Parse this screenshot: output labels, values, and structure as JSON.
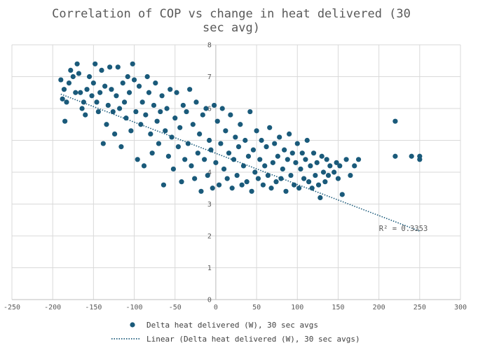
{
  "chart_data": {
    "type": "scatter",
    "title_lines": [
      "Correlation of COP vs change in heat delivered (30",
      "sec avg)"
    ],
    "xlabel": "",
    "ylabel": "",
    "xlim": [
      -250,
      300
    ],
    "ylim": [
      0,
      8
    ],
    "x_ticks": [
      -250,
      -200,
      -150,
      -100,
      -50,
      0,
      50,
      100,
      150,
      200,
      250,
      300
    ],
    "y_ticks": [
      0,
      1,
      2,
      3,
      4,
      5,
      6,
      7,
      8
    ],
    "grid": true,
    "legend_position": "bottom",
    "colors": {
      "marker": "#1a5a7a",
      "trendline": "#1a5a7a",
      "grid": "#d9d9d9",
      "axis": "#bfbfbf"
    },
    "series": [
      {
        "name": "Delta heat delivered (W), 30 sec avgs",
        "style": "markers",
        "points": [
          [
            -190,
            6.9
          ],
          [
            -188,
            6.3
          ],
          [
            -186,
            6.6
          ],
          [
            -185,
            5.6
          ],
          [
            -183,
            6.2
          ],
          [
            -180,
            6.8
          ],
          [
            -178,
            7.2
          ],
          [
            -175,
            7.0
          ],
          [
            -172,
            6.5
          ],
          [
            -170,
            7.4
          ],
          [
            -168,
            7.1
          ],
          [
            -166,
            6.5
          ],
          [
            -164,
            6.0
          ],
          [
            -162,
            6.2
          ],
          [
            -160,
            5.8
          ],
          [
            -158,
            6.6
          ],
          [
            -155,
            7.0
          ],
          [
            -152,
            6.4
          ],
          [
            -150,
            6.8
          ],
          [
            -148,
            7.4
          ],
          [
            -146,
            6.2
          ],
          [
            -144,
            5.9
          ],
          [
            -142,
            6.5
          ],
          [
            -140,
            7.2
          ],
          [
            -138,
            4.9
          ],
          [
            -136,
            6.7
          ],
          [
            -134,
            5.5
          ],
          [
            -132,
            6.1
          ],
          [
            -130,
            7.3
          ],
          [
            -128,
            6.6
          ],
          [
            -126,
            5.9
          ],
          [
            -124,
            5.2
          ],
          [
            -122,
            6.4
          ],
          [
            -120,
            7.3
          ],
          [
            -118,
            6.0
          ],
          [
            -116,
            4.8
          ],
          [
            -114,
            6.8
          ],
          [
            -112,
            6.2
          ],
          [
            -110,
            5.7
          ],
          [
            -108,
            7.0
          ],
          [
            -106,
            6.5
          ],
          [
            -104,
            5.3
          ],
          [
            -102,
            7.4
          ],
          [
            -100,
            6.9
          ],
          [
            -98,
            5.9
          ],
          [
            -96,
            4.4
          ],
          [
            -94,
            6.7
          ],
          [
            -92,
            5.5
          ],
          [
            -90,
            6.2
          ],
          [
            -88,
            4.2
          ],
          [
            -86,
            5.8
          ],
          [
            -84,
            7.0
          ],
          [
            -82,
            6.5
          ],
          [
            -80,
            5.2
          ],
          [
            -78,
            4.6
          ],
          [
            -76,
            6.1
          ],
          [
            -74,
            6.8
          ],
          [
            -72,
            5.6
          ],
          [
            -70,
            4.9
          ],
          [
            -68,
            5.9
          ],
          [
            -66,
            6.4
          ],
          [
            -64,
            3.6
          ],
          [
            -62,
            5.3
          ],
          [
            -60,
            6.0
          ],
          [
            -58,
            4.5
          ],
          [
            -56,
            6.6
          ],
          [
            -54,
            5.1
          ],
          [
            -52,
            4.1
          ],
          [
            -50,
            5.7
          ],
          [
            -48,
            6.5
          ],
          [
            -46,
            4.8
          ],
          [
            -44,
            5.4
          ],
          [
            -42,
            3.7
          ],
          [
            -40,
            6.1
          ],
          [
            -38,
            4.4
          ],
          [
            -36,
            5.9
          ],
          [
            -34,
            4.9
          ],
          [
            -32,
            6.6
          ],
          [
            -30,
            4.2
          ],
          [
            -28,
            5.5
          ],
          [
            -26,
            3.8
          ],
          [
            -24,
            6.2
          ],
          [
            -22,
            4.6
          ],
          [
            -20,
            5.2
          ],
          [
            -18,
            3.4
          ],
          [
            -16,
            5.8
          ],
          [
            -14,
            4.4
          ],
          [
            -12,
            6.0
          ],
          [
            -10,
            3.9
          ],
          [
            -8,
            5.0
          ],
          [
            -6,
            4.7
          ],
          [
            -4,
            3.5
          ],
          [
            -2,
            6.1
          ],
          [
            0,
            4.3
          ],
          [
            2,
            5.6
          ],
          [
            4,
            3.6
          ],
          [
            6,
            4.9
          ],
          [
            8,
            6.0
          ],
          [
            10,
            4.1
          ],
          [
            12,
            5.3
          ],
          [
            14,
            3.8
          ],
          [
            16,
            4.6
          ],
          [
            18,
            5.8
          ],
          [
            20,
            3.5
          ],
          [
            22,
            4.4
          ],
          [
            24,
            5.1
          ],
          [
            26,
            3.9
          ],
          [
            28,
            4.8
          ],
          [
            30,
            5.5
          ],
          [
            32,
            3.6
          ],
          [
            34,
            4.2
          ],
          [
            36,
            5.0
          ],
          [
            38,
            3.7
          ],
          [
            40,
            4.5
          ],
          [
            42,
            5.9
          ],
          [
            44,
            3.4
          ],
          [
            46,
            4.7
          ],
          [
            48,
            4.0
          ],
          [
            50,
            5.3
          ],
          [
            52,
            3.8
          ],
          [
            54,
            4.4
          ],
          [
            56,
            5.0
          ],
          [
            58,
            3.6
          ],
          [
            60,
            4.2
          ],
          [
            62,
            4.8
          ],
          [
            64,
            3.9
          ],
          [
            66,
            5.4
          ],
          [
            68,
            3.5
          ],
          [
            70,
            4.3
          ],
          [
            72,
            4.9
          ],
          [
            74,
            3.7
          ],
          [
            76,
            4.5
          ],
          [
            78,
            5.1
          ],
          [
            80,
            3.8
          ],
          [
            82,
            4.1
          ],
          [
            84,
            4.7
          ],
          [
            86,
            3.4
          ],
          [
            88,
            4.4
          ],
          [
            90,
            5.2
          ],
          [
            92,
            3.9
          ],
          [
            94,
            4.6
          ],
          [
            96,
            3.6
          ],
          [
            98,
            4.3
          ],
          [
            100,
            4.9
          ],
          [
            102,
            3.5
          ],
          [
            104,
            4.1
          ],
          [
            106,
            4.6
          ],
          [
            108,
            3.8
          ],
          [
            110,
            4.4
          ],
          [
            112,
            5.0
          ],
          [
            114,
            3.7
          ],
          [
            116,
            4.2
          ],
          [
            118,
            3.5
          ],
          [
            120,
            4.6
          ],
          [
            122,
            3.9
          ],
          [
            124,
            4.3
          ],
          [
            126,
            3.6
          ],
          [
            128,
            3.2
          ],
          [
            130,
            4.5
          ],
          [
            132,
            4.0
          ],
          [
            134,
            3.7
          ],
          [
            136,
            4.4
          ],
          [
            138,
            3.9
          ],
          [
            140,
            4.2
          ],
          [
            145,
            4.0
          ],
          [
            148,
            4.3
          ],
          [
            150,
            3.8
          ],
          [
            152,
            4.2
          ],
          [
            155,
            3.3
          ],
          [
            160,
            4.4
          ],
          [
            165,
            3.9
          ],
          [
            170,
            4.2
          ],
          [
            175,
            4.4
          ],
          [
            220,
            5.6
          ],
          [
            220,
            4.5
          ],
          [
            240,
            4.5
          ],
          [
            250,
            4.5
          ],
          [
            250,
            4.4
          ]
        ]
      },
      {
        "name": "Linear (Delta heat delivered (W), 30 sec avgs)",
        "style": "dotted-line",
        "points": [
          [
            -190,
            6.45
          ],
          [
            250,
            2.15
          ]
        ]
      }
    ],
    "annotations": [
      {
        "text": "R² = 0.3353",
        "x": 230,
        "y": 2.15
      }
    ]
  }
}
